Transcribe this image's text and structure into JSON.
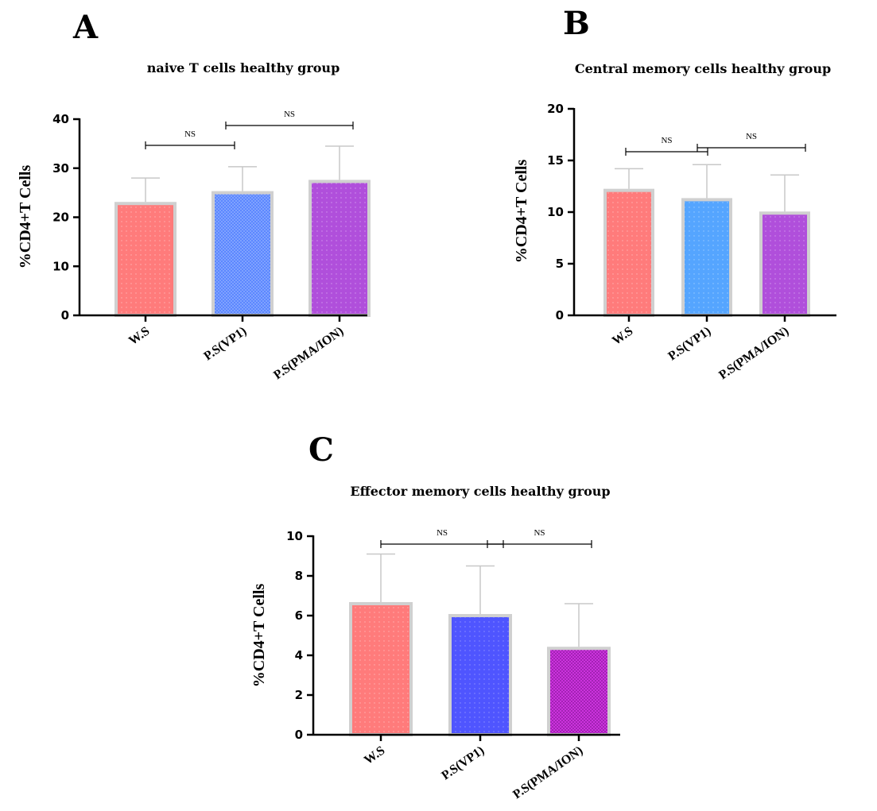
{
  "panels": [
    {
      "letter": "A",
      "title": "naive T cells healthy group",
      "ylabel": "%CD4+T Cells"
    },
    {
      "letter": "B",
      "title": "Central memory cells healthy group",
      "ylabel": "%CD4+T Cells"
    },
    {
      "letter": "C",
      "title": "Effector memory cells healthy group",
      "ylabel": "%CD4+T Cells"
    }
  ],
  "significance_label": "NS",
  "colors": {
    "ws": "#ff7b7b",
    "vp1_a": "#5c87ff",
    "vp1_b": "#55a5ff",
    "vp1_c": "#4f55ff",
    "pma": "#b04fdb",
    "pma_c": "#cc33dd",
    "bar_border": "#d0d0d0",
    "error": "#c8c8c8"
  },
  "chart_data": [
    {
      "type": "bar",
      "title": "naive T cells healthy group",
      "ylabel": "%CD4+T Cells",
      "categories": [
        "W.S",
        "P.S(VP1)",
        "P.S(PMA/ION)"
      ],
      "values": [
        22.8,
        25,
        27.3
      ],
      "error_upper": [
        28,
        30.3,
        34.5
      ],
      "ylim": [
        0,
        40
      ],
      "yticks": [
        0,
        10,
        20,
        30,
        40
      ],
      "comparisons": [
        {
          "from": 0,
          "to": 1,
          "label": "NS"
        },
        {
          "from": 1,
          "to": 2,
          "label": "NS"
        }
      ]
    },
    {
      "type": "bar",
      "title": "Central memory cells healthy group",
      "ylabel": "%CD4+T Cells",
      "categories": [
        "W.S",
        "P.S(VP1)",
        "P.S(PMA/ION)"
      ],
      "values": [
        12.1,
        11.2,
        9.9
      ],
      "error_upper": [
        14.2,
        14.6,
        13.6
      ],
      "ylim": [
        0,
        20
      ],
      "yticks": [
        0,
        5,
        10,
        15,
        20
      ],
      "comparisons": [
        {
          "from": 0,
          "to": 1,
          "label": "NS"
        },
        {
          "from": 1,
          "to": 2,
          "label": "NS"
        }
      ]
    },
    {
      "type": "bar",
      "title": "Effector memory cells healthy group",
      "ylabel": "%CD4+T Cells",
      "categories": [
        "W.S",
        "P.S(VP1)",
        "P.S(PMA/ION)"
      ],
      "values": [
        6.6,
        6.0,
        4.35
      ],
      "error_upper": [
        9.1,
        8.5,
        6.6
      ],
      "ylim": [
        0,
        10
      ],
      "yticks": [
        0,
        2,
        4,
        6,
        8,
        10
      ],
      "comparisons": [
        {
          "from": 0,
          "to": 1,
          "label": "NS"
        },
        {
          "from": 1,
          "to": 2,
          "label": "NS"
        }
      ]
    }
  ]
}
